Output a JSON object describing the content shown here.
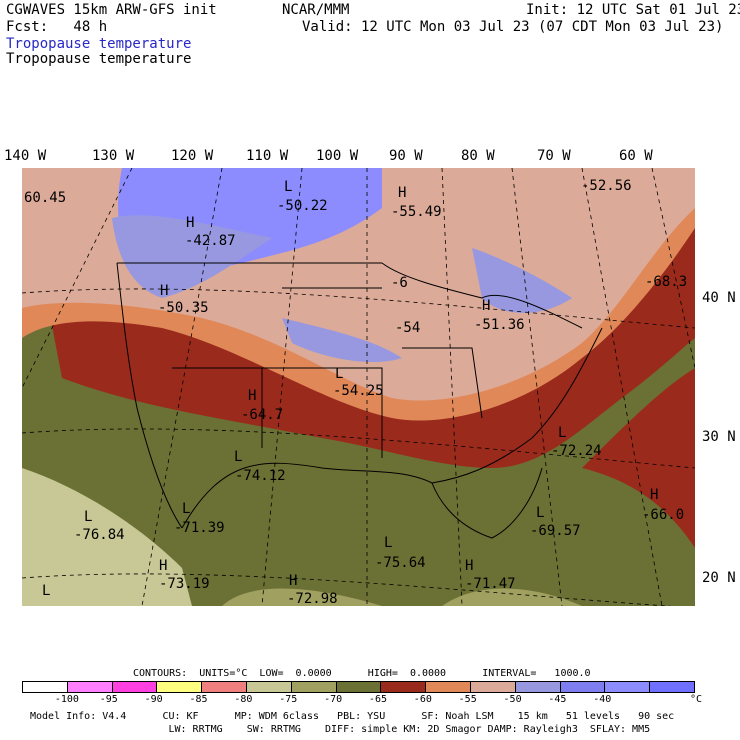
{
  "header": {
    "model": "CGWAVES 15km ARW-GFS init",
    "fcst": "Fcst:   48 h",
    "center": "NCAR/MMM",
    "init": "Init: 12 UTC Sat 01 Jul 23",
    "valid": "Valid: 12 UTC Mon 03 Jul 23 (07 CDT Mon 03 Jul 23)",
    "field_blue": "Tropopause temperature",
    "field_black": "Tropopause temperature"
  },
  "lon_labels": [
    "140 W",
    "130 W",
    "120 W",
    "110 W",
    "100 W",
    "90 W",
    "80 W",
    "70 W",
    "60 W"
  ],
  "lat_labels": [
    "40 N",
    "30 N",
    "20 N"
  ],
  "map_labels": {
    "l1": "L",
    "v1": "-50.22",
    "h1": "H",
    "v2": "-55.49",
    "v3": "-52.56",
    "v4": "60.45",
    "h2": "H",
    "v5": "-42.87",
    "h3": "H",
    "v6": "-50.35",
    "v7": "-68.3",
    "v8": "-6",
    "v9": "-54",
    "h4": "H",
    "v10": "-51.36",
    "l2": "L",
    "v11": "-54.25",
    "h5": "H",
    "v12": "-64.7",
    "l3": "L",
    "v13": "-74.12",
    "l4": "L",
    "v14": "-72.24",
    "l5": "L",
    "v15": "-76.84",
    "l6": "L",
    "v16": "-71.39",
    "h6": "H",
    "v17": "-66.0",
    "l7": "L",
    "v18": "-69.57",
    "l8": "L",
    "v19": "-75.64",
    "h7": "H",
    "v20": "-73.19",
    "h8": "H",
    "v21": "-72.98",
    "h9": "H",
    "v22": "-71.47",
    "l9": "L"
  },
  "contours_line": "CONTOURS:  UNITS=°C  LOW=  0.0000      HIGH=  0.0000      INTERVAL=   1000.0",
  "legend": {
    "colors": [
      "#ffffff",
      "#ff80ff",
      "#ff40e0",
      "#ffff80",
      "#f08080",
      "#c8c896",
      "#a0a060",
      "#6b7034",
      "#9a2a1c",
      "#e08858",
      "#dcaa98",
      "#9898e0",
      "#7e7ef0",
      "#8c8cff",
      "#7070ff"
    ],
    "ticks": [
      "-100",
      "-95",
      "-90",
      "-85",
      "-80",
      "-75",
      "-70",
      "-65",
      "-60",
      "-55",
      "-50",
      "-45",
      "-40"
    ],
    "unit": "°C"
  },
  "footer": {
    "line1": "Model Info: V4.4      CU: KF      MP: WDM 6class   PBL: YSU      SF: Noah LSM    15 km   51 levels   90 sec",
    "line2": "                       LW: RRTMG    SW: RRTMG    DIFF: simple KM: 2D Smagor DAMP: Rayleigh3  SFLAY: MM5"
  }
}
